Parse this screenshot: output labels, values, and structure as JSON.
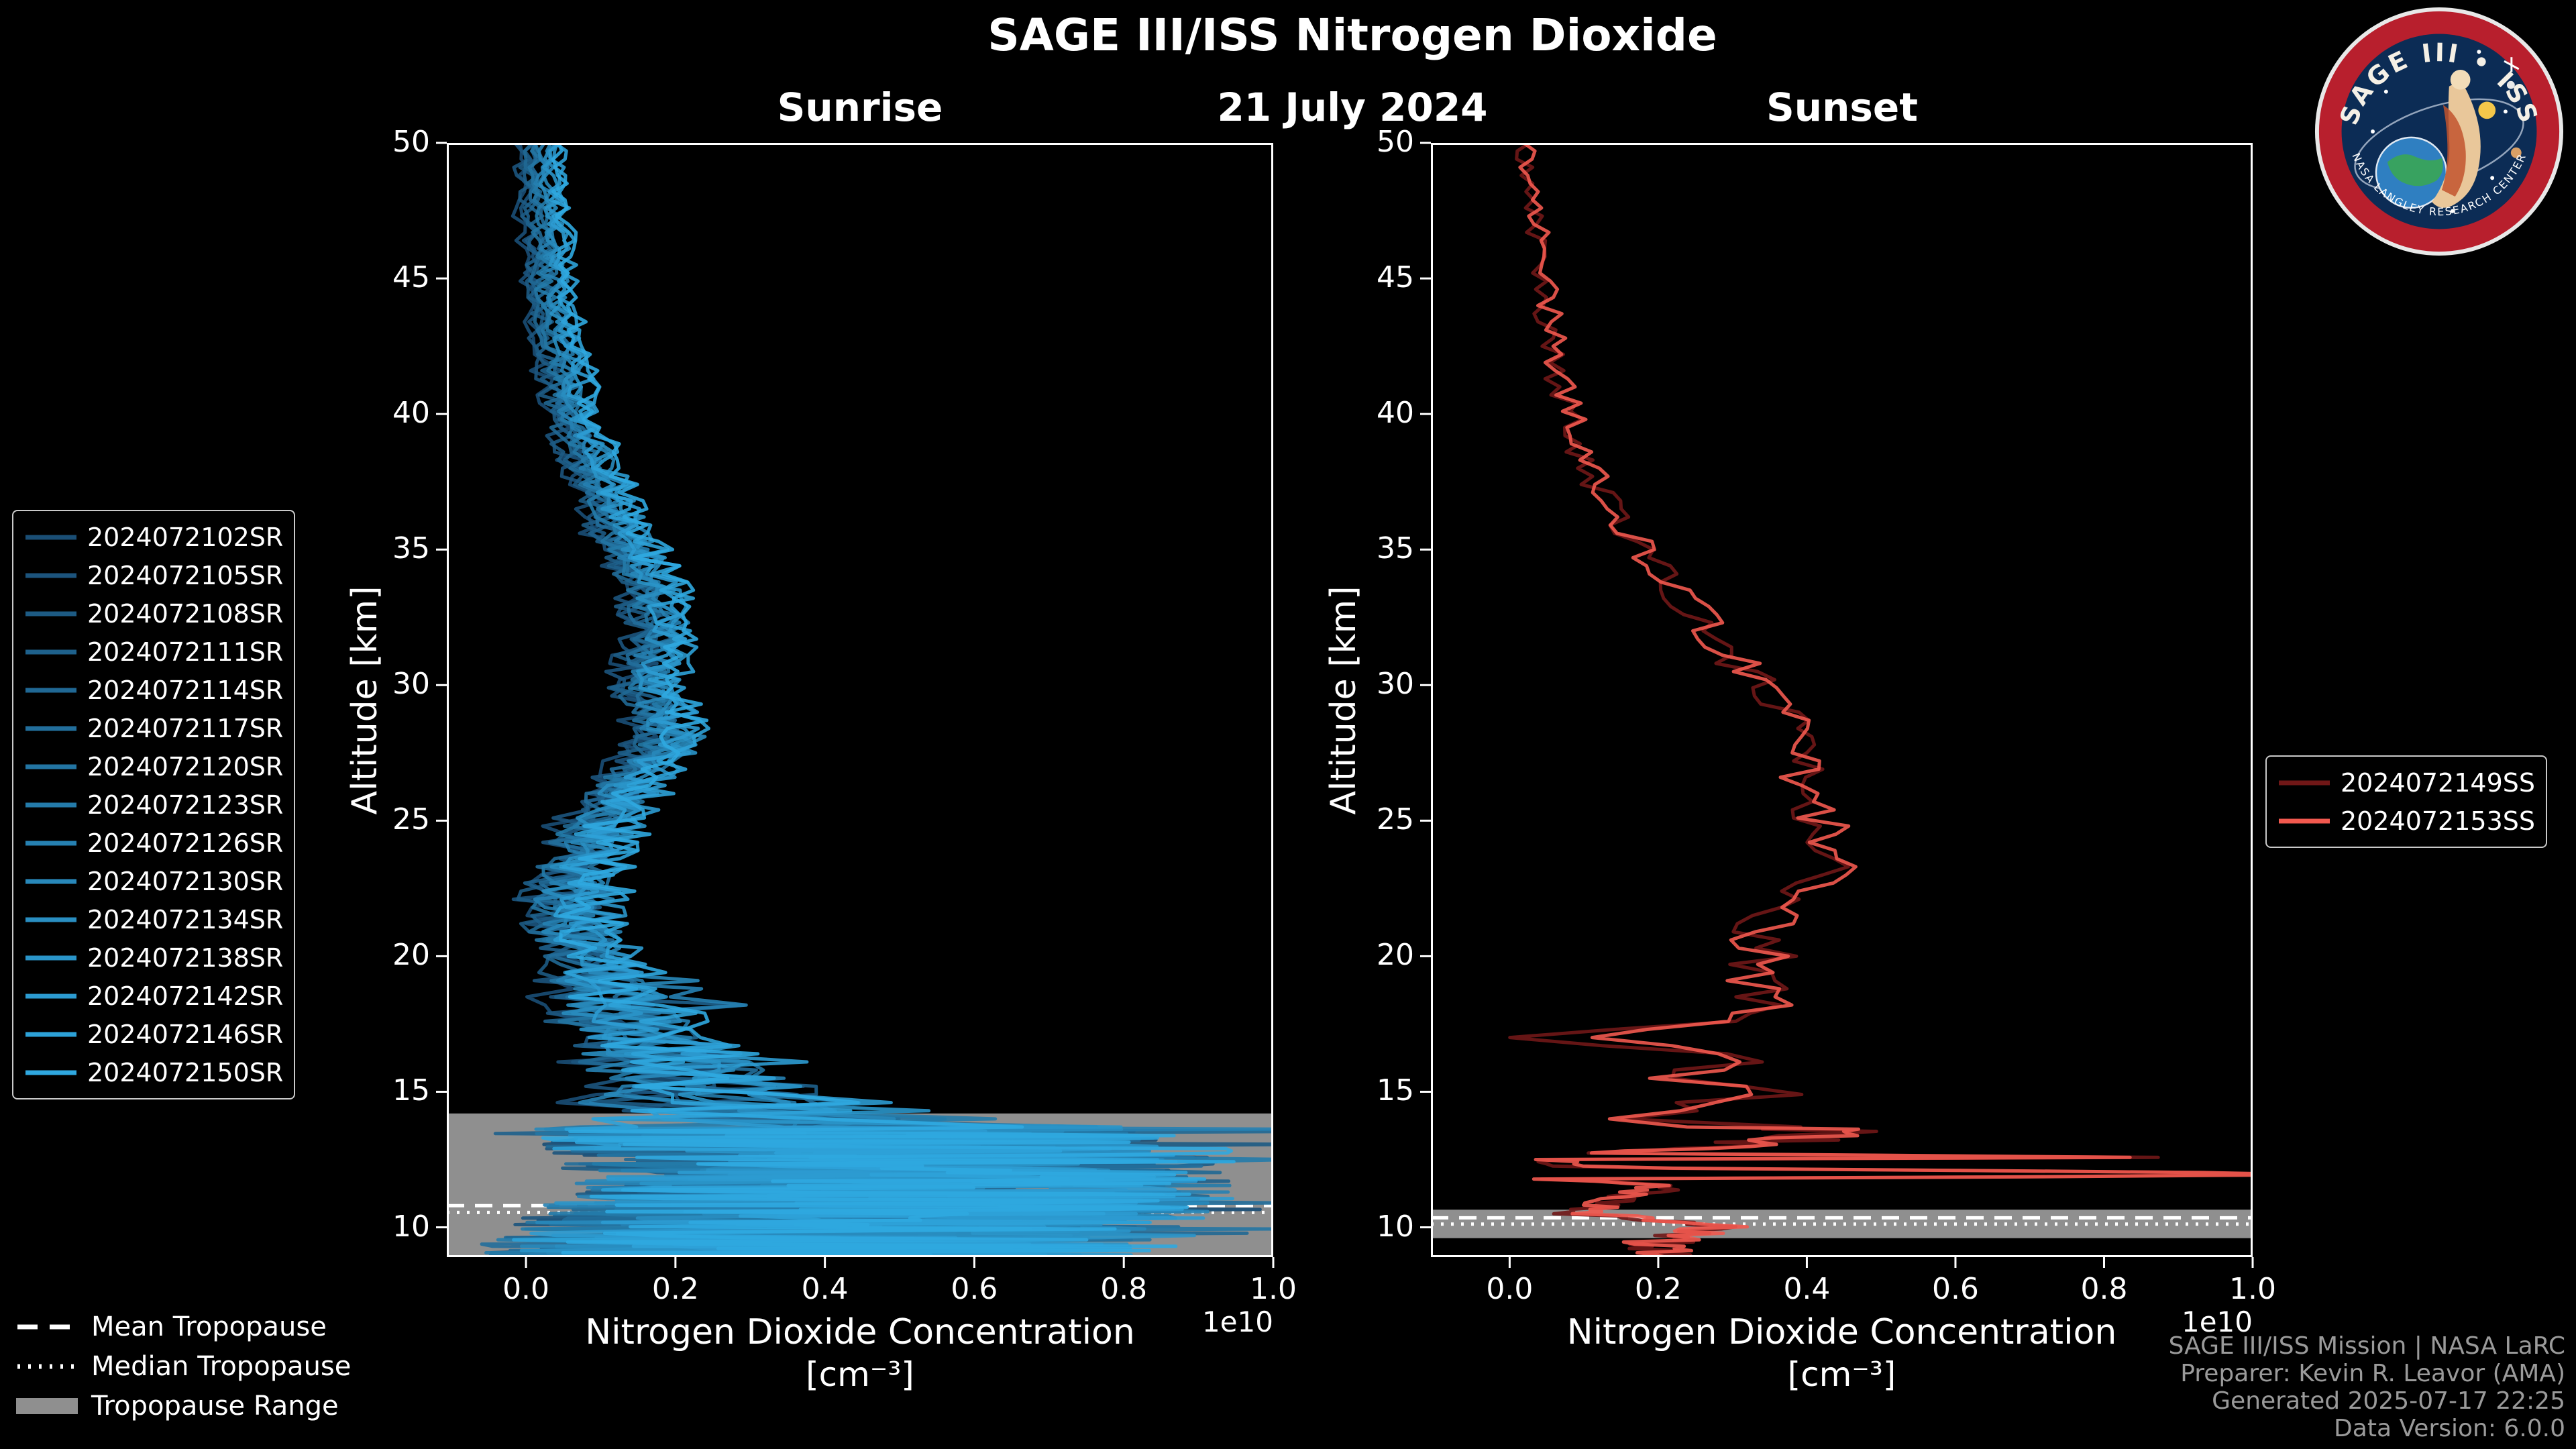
{
  "header": {
    "title": "SAGE III/ISS Nitrogen Dioxide",
    "date": "21 July 2024"
  },
  "logo": {
    "text": "SAGE III • ISS",
    "subtext": "NASA LANGLEY RESEARCH CENTER"
  },
  "tropopause_legend": {
    "mean": "Mean Tropopause",
    "median": "Median Tropopause",
    "range": "Tropopause Range"
  },
  "footer": {
    "lines": [
      "SAGE III/ISS Mission | NASA LaRC",
      "Preparer: Kevin R. Leavor (AMA)",
      "Generated 2025-07-17 22:25",
      "Data Version: 6.0.0"
    ]
  },
  "colors": {
    "tropopause_band": "#8f8f8f",
    "tropopause_line": "#ffffff",
    "sunrise_dark": "#1a4e75",
    "sunrise_bright": "#2fa8e0",
    "sunset_dark": "#701717",
    "sunset_bright": "#f2594f"
  },
  "chart_data": [
    {
      "type": "line",
      "id": "sunrise",
      "title": "Sunrise",
      "ylabel": "Altitude [km]",
      "xlabel": "Nitrogen Dioxide Concentration",
      "xlabel_units": "[cm⁻³]",
      "x_offset_label": "1e10",
      "xlim": [
        -0.106,
        1.0
      ],
      "ylim": [
        8.9,
        50
      ],
      "xticks": [
        0.0,
        0.2,
        0.4,
        0.6,
        0.8,
        1.0
      ],
      "xtick_labels": [
        "0.0",
        "0.2",
        "0.4",
        "0.6",
        "0.8",
        "1.0"
      ],
      "yticks": [
        10,
        15,
        20,
        25,
        30,
        35,
        40,
        45,
        50
      ],
      "grid": false,
      "legend_position": "left",
      "series": [
        {
          "name": "2024072102SR",
          "color": "#1a4e75"
        },
        {
          "name": "2024072105SR",
          "color": "#1c547d"
        },
        {
          "name": "2024072108SR",
          "color": "#1d5b84"
        },
        {
          "name": "2024072111SR",
          "color": "#1e618c"
        },
        {
          "name": "2024072114SR",
          "color": "#206894"
        },
        {
          "name": "2024072117SR",
          "color": "#226e9b"
        },
        {
          "name": "2024072120SR",
          "color": "#2375a3"
        },
        {
          "name": "2024072123SR",
          "color": "#247baa"
        },
        {
          "name": "2024072126SR",
          "color": "#2681b2"
        },
        {
          "name": "2024072130SR",
          "color": "#2888ba"
        },
        {
          "name": "2024072134SR",
          "color": "#298ec1"
        },
        {
          "name": "2024072138SR",
          "color": "#2a95c9"
        },
        {
          "name": "2024072142SR",
          "color": "#2c9bd1"
        },
        {
          "name": "2024072146SR",
          "color": "#2da2d8"
        },
        {
          "name": "2024072150SR",
          "color": "#2fa8e0"
        }
      ],
      "base_profile": {
        "alt": [
          50,
          48,
          46,
          44,
          42,
          40,
          38,
          36,
          34,
          33,
          32,
          31,
          30,
          29,
          28,
          27,
          26,
          25,
          24,
          23,
          22,
          21,
          20,
          19,
          18,
          17,
          16,
          15,
          14.5,
          14,
          13.5,
          13,
          12.5,
          12,
          11.5,
          11,
          10.5,
          10,
          9.5,
          9
        ],
        "value": [
          0.02,
          0.02,
          0.03,
          0.03,
          0.05,
          0.06,
          0.09,
          0.12,
          0.16,
          0.17,
          0.18,
          0.17,
          0.16,
          0.18,
          0.19,
          0.16,
          0.13,
          0.1,
          0.08,
          0.07,
          0.06,
          0.07,
          0.08,
          0.1,
          0.12,
          0.16,
          0.19,
          0.24,
          0.28,
          0.35,
          0.42,
          0.45,
          0.5,
          0.52,
          0.5,
          0.48,
          0.45,
          0.42,
          0.4,
          0.38
        ]
      },
      "noise_amp": {
        "alt": [
          50,
          42,
          35,
          28,
          24,
          20,
          18,
          16,
          15,
          14,
          13.5,
          9
        ],
        "amp": [
          0.012,
          0.018,
          0.03,
          0.04,
          0.05,
          0.06,
          0.09,
          0.12,
          0.15,
          0.3,
          0.45,
          0.45
        ]
      },
      "tropopause": {
        "mean": 10.8,
        "median": 10.55,
        "range": [
          8.9,
          14.2
        ]
      }
    },
    {
      "type": "line",
      "id": "sunset",
      "title": "Sunset",
      "ylabel": "Altitude [km]",
      "xlabel": "Nitrogen Dioxide Concentration",
      "xlabel_units": "[cm⁻³]",
      "x_offset_label": "1e10",
      "xlim": [
        -0.106,
        1.0
      ],
      "ylim": [
        8.9,
        50
      ],
      "xticks": [
        0.0,
        0.2,
        0.4,
        0.6,
        0.8,
        1.0
      ],
      "xtick_labels": [
        "0.0",
        "0.2",
        "0.4",
        "0.6",
        "0.8",
        "1.0"
      ],
      "yticks": [
        10,
        15,
        20,
        25,
        30,
        35,
        40,
        45,
        50
      ],
      "grid": false,
      "legend_position": "right",
      "series": [
        {
          "name": "2024072149SS",
          "color": "#701717"
        },
        {
          "name": "2024072153SS",
          "color": "#f2594f"
        }
      ],
      "base_profile": {
        "alt": [
          50,
          48,
          46,
          44,
          42,
          41,
          40,
          39,
          38,
          37,
          36,
          35,
          34,
          33,
          32,
          31,
          30,
          29,
          28,
          27,
          26,
          25,
          24,
          23,
          22,
          21,
          20,
          19,
          18,
          17.5,
          17,
          16.5,
          16,
          15.5,
          15,
          14.5,
          14,
          13.5,
          13,
          12.7,
          12.6,
          12.5,
          12.2,
          12,
          11.9,
          11.8,
          11.5,
          11,
          10.5,
          10,
          9.5
        ],
        "value": [
          0.02,
          0.03,
          0.04,
          0.05,
          0.06,
          0.07,
          0.08,
          0.09,
          0.1,
          0.13,
          0.15,
          0.18,
          0.21,
          0.24,
          0.27,
          0.3,
          0.34,
          0.38,
          0.41,
          0.39,
          0.4,
          0.42,
          0.44,
          0.43,
          0.39,
          0.33,
          0.35,
          0.33,
          0.37,
          0.25,
          0.05,
          0.22,
          0.3,
          0.15,
          0.33,
          0.25,
          0.18,
          0.45,
          0.3,
          0.05,
          1.05,
          0.05,
          0.1,
          1.05,
          1.05,
          0.05,
          0.2,
          0.15,
          0.1,
          0.28,
          0.2
        ]
      },
      "noise_amp": {
        "alt": [
          50,
          40,
          30,
          22,
          18,
          16,
          15,
          13.5,
          12.8,
          12.4,
          11.6,
          9.5
        ],
        "amp": [
          0.012,
          0.02,
          0.03,
          0.04,
          0.05,
          0.1,
          0.1,
          0.12,
          0.04,
          0.03,
          0.04,
          0.05
        ]
      },
      "tropopause": {
        "mean": 10.35,
        "median": 10.12,
        "range": [
          9.6,
          10.65
        ]
      }
    }
  ]
}
